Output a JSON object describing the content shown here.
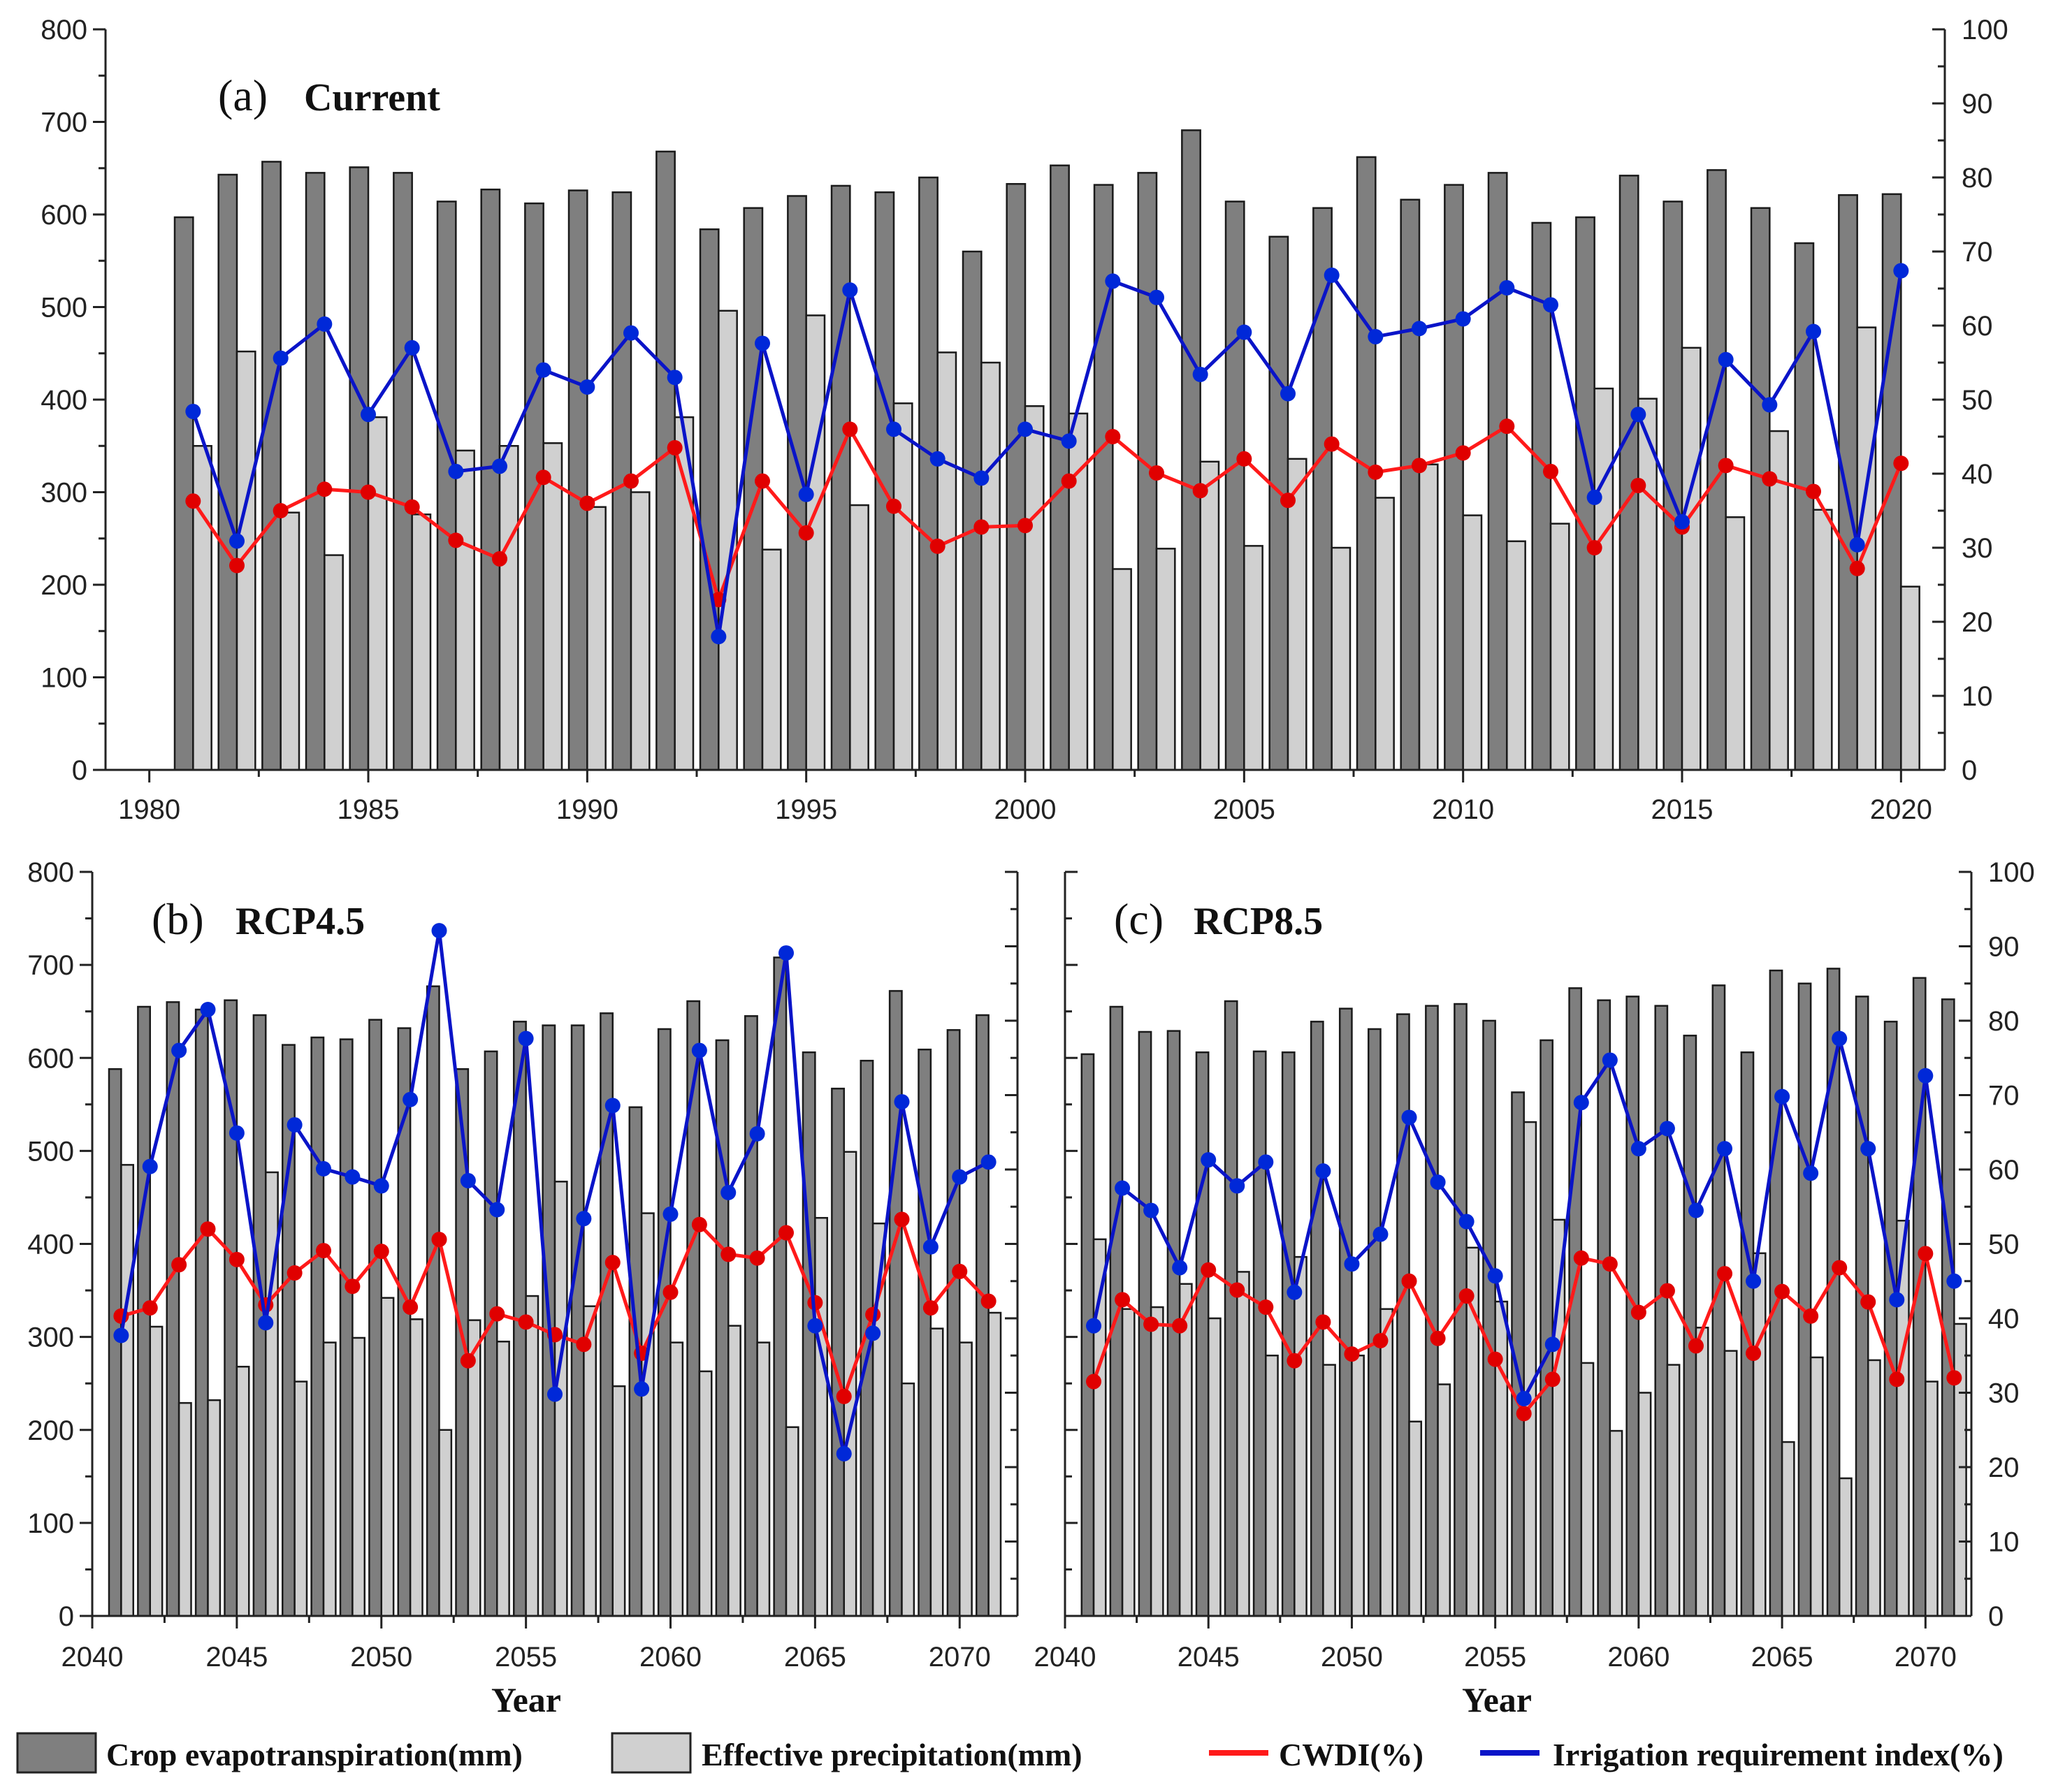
{
  "chart_data": [
    {
      "type": "bar+line",
      "panel_label": "(a)",
      "title": "Current",
      "xlabel": "",
      "xlim": [
        1979,
        2021
      ],
      "xticks": [
        "1980",
        "1985",
        "1990",
        "1995",
        "2000",
        "2005",
        "2010",
        "2015",
        "2020"
      ],
      "ylim_left": [
        0,
        800
      ],
      "ylim_right": [
        0,
        100
      ],
      "yticks_left": [
        "0",
        "100",
        "200",
        "300",
        "400",
        "500",
        "600",
        "700",
        "800"
      ],
      "yticks_right": [
        "0",
        "10",
        "20",
        "30",
        "40",
        "50",
        "60",
        "70",
        "80",
        "90",
        "100"
      ],
      "show_left_labels": true,
      "show_right_labels": true,
      "x": [
        1981,
        1982,
        1983,
        1984,
        1985,
        1986,
        1987,
        1988,
        1989,
        1990,
        1991,
        1992,
        1993,
        1994,
        1995,
        1996,
        1997,
        1998,
        1999,
        2000,
        2001,
        2002,
        2003,
        2004,
        2005,
        2006,
        2007,
        2008,
        2009,
        2010,
        2011,
        2012,
        2013,
        2014,
        2015,
        2016,
        2017,
        2018,
        2019,
        2020
      ],
      "series": [
        {
          "name": "Crop evapotranspiration(mm)",
          "axis": "left",
          "kind": "bar",
          "values": [
            597,
            643,
            657,
            645,
            651,
            645,
            614,
            627,
            612,
            626,
            624,
            668,
            584,
            607,
            620,
            631,
            624,
            640,
            560,
            633,
            653,
            632,
            645,
            691,
            614,
            576,
            607,
            662,
            616,
            632,
            645,
            591,
            597,
            642,
            614,
            648,
            607,
            569,
            621,
            622
          ]
        },
        {
          "name": "Effective precipitation(mm)",
          "axis": "left",
          "kind": "bar",
          "values": [
            350,
            452,
            278,
            232,
            381,
            276,
            345,
            350,
            353,
            284,
            300,
            381,
            496,
            238,
            491,
            286,
            396,
            451,
            440,
            393,
            385,
            217,
            239,
            333,
            242,
            336,
            240,
            294,
            330,
            275,
            247,
            266,
            412,
            401,
            456,
            273,
            366,
            281,
            478,
            198
          ]
        },
        {
          "name": "CWDI(%)",
          "axis": "right",
          "kind": "line",
          "values": [
            36.3,
            27.6,
            35.0,
            37.9,
            37.5,
            35.5,
            31.0,
            28.5,
            39.5,
            36.0,
            39.0,
            43.5,
            23.0,
            39.0,
            32.0,
            46.0,
            35.6,
            30.2,
            32.8,
            33.0,
            39.0,
            45.0,
            40.1,
            37.7,
            42.0,
            36.4,
            44.0,
            40.2,
            41.1,
            42.8,
            46.4,
            40.3,
            30.0,
            38.4,
            32.8,
            41.1,
            39.3,
            37.6,
            27.2,
            41.4
          ]
        },
        {
          "name": "Irrigation requirement index(%)",
          "axis": "right",
          "kind": "line",
          "values": [
            48.4,
            30.9,
            55.6,
            60.2,
            48.0,
            57.0,
            40.3,
            41.0,
            54.0,
            51.7,
            59.0,
            53.0,
            18.0,
            57.6,
            37.2,
            64.8,
            46.0,
            42.0,
            39.4,
            46.0,
            44.4,
            66.0,
            63.8,
            53.4,
            59.1,
            50.8,
            66.8,
            58.5,
            59.6,
            60.9,
            65.1,
            62.8,
            36.8,
            48.0,
            33.5,
            55.4,
            49.3,
            59.2,
            30.4,
            67.4
          ]
        }
      ]
    },
    {
      "type": "bar+line",
      "panel_label": "(b)",
      "title": "RCP4.5",
      "xlabel": "Year",
      "xlim": [
        2040,
        2072
      ],
      "xticks": [
        "2040",
        "2045",
        "2050",
        "2055",
        "2060",
        "2065",
        "2070"
      ],
      "ylim_left": [
        0,
        800
      ],
      "ylim_right": [
        0,
        100
      ],
      "yticks_left": [
        "0",
        "100",
        "200",
        "300",
        "400",
        "500",
        "600",
        "700",
        "800"
      ],
      "yticks_right": [],
      "show_left_labels": true,
      "show_right_labels": false,
      "x": [
        2041,
        2042,
        2043,
        2044,
        2045,
        2046,
        2047,
        2048,
        2049,
        2050,
        2051,
        2052,
        2053,
        2054,
        2055,
        2056,
        2057,
        2058,
        2059,
        2060,
        2061,
        2062,
        2063,
        2064,
        2065,
        2066,
        2067,
        2068,
        2069,
        2070,
        2071
      ],
      "series": [
        {
          "name": "Crop evapotranspiration(mm)",
          "axis": "left",
          "kind": "bar",
          "values": [
            588,
            655,
            660,
            652,
            662,
            646,
            614,
            622,
            620,
            641,
            632,
            677,
            588,
            607,
            639,
            635,
            635,
            648,
            547,
            631,
            661,
            619,
            645,
            708,
            606,
            567,
            597,
            672,
            609,
            630,
            646
          ]
        },
        {
          "name": "Effective precipitation(mm)",
          "axis": "left",
          "kind": "bar",
          "values": [
            485,
            311,
            229,
            232,
            268,
            477,
            252,
            294,
            299,
            342,
            319,
            200,
            318,
            295,
            344,
            467,
            333,
            247,
            433,
            294,
            263,
            312,
            294,
            203,
            428,
            499,
            422,
            250,
            309,
            294,
            326
          ]
        },
        {
          "name": "CWDI(%)",
          "axis": "right",
          "kind": "line",
          "values": [
            40.3,
            41.4,
            47.2,
            52.0,
            47.9,
            41.8,
            46.1,
            49.1,
            44.3,
            49.0,
            41.5,
            50.6,
            34.3,
            40.6,
            39.5,
            37.8,
            36.5,
            47.5,
            35.3,
            43.5,
            52.6,
            48.6,
            48.1,
            51.5,
            42.1,
            29.5,
            40.5,
            53.3,
            41.4,
            46.3,
            42.3
          ]
        },
        {
          "name": "Irrigation requirement index(%)",
          "axis": "right",
          "kind": "line",
          "values": [
            37.7,
            60.4,
            76.0,
            81.5,
            64.9,
            39.4,
            66.0,
            60.1,
            59.0,
            57.8,
            69.4,
            92.1,
            58.5,
            54.6,
            77.6,
            29.8,
            53.4,
            68.6,
            30.5,
            54.0,
            76.0,
            56.9,
            64.8,
            89.1,
            39.0,
            21.8,
            38.0,
            69.1,
            49.6,
            59.0,
            61.0
          ]
        }
      ]
    },
    {
      "type": "bar+line",
      "panel_label": "(c)",
      "title": "RCP8.5",
      "xlabel": "Year",
      "xlim": [
        2040,
        2071.6
      ],
      "xticks": [
        "2040",
        "2045",
        "2050",
        "2055",
        "2060",
        "2065",
        "2070"
      ],
      "ylim_left": [
        0,
        800
      ],
      "ylim_right": [
        0,
        100
      ],
      "yticks_left": [],
      "yticks_right": [
        "0",
        "10",
        "20",
        "30",
        "40",
        "50",
        "60",
        "70",
        "80",
        "90",
        "100"
      ],
      "show_left_labels": false,
      "show_right_labels": true,
      "x": [
        2041,
        2042,
        2043,
        2044,
        2045,
        2046,
        2047,
        2048,
        2049,
        2050,
        2051,
        2052,
        2053,
        2054,
        2055,
        2056,
        2057,
        2058,
        2059,
        2060,
        2061,
        2062,
        2063,
        2064,
        2065,
        2066,
        2067,
        2068,
        2069,
        2070,
        2071
      ],
      "series": [
        {
          "name": "Crop evapotranspiration(mm)",
          "axis": "left",
          "kind": "bar",
          "values": [
            604,
            655,
            628,
            629,
            606,
            661,
            607,
            606,
            639,
            653,
            631,
            647,
            656,
            658,
            640,
            563,
            619,
            675,
            662,
            666,
            656,
            624,
            678,
            606,
            694,
            680,
            696,
            666,
            639,
            686,
            663
          ]
        },
        {
          "name": "Effective precipitation(mm)",
          "axis": "left",
          "kind": "bar",
          "values": [
            405,
            330,
            332,
            357,
            320,
            370,
            280,
            386,
            270,
            280,
            330,
            209,
            249,
            396,
            338,
            531,
            426,
            272,
            199,
            240,
            270,
            310,
            285,
            390,
            187,
            278,
            148,
            275,
            425,
            252,
            314
          ]
        },
        {
          "name": "CWDI(%)",
          "axis": "right",
          "kind": "line",
          "values": [
            31.5,
            42.5,
            39.2,
            39.0,
            46.5,
            43.8,
            41.5,
            34.3,
            39.5,
            35.2,
            37.0,
            45.0,
            37.3,
            43.0,
            34.5,
            27.2,
            31.8,
            48.1,
            47.3,
            40.8,
            43.7,
            36.3,
            46.0,
            35.3,
            43.6,
            40.3,
            46.8,
            42.2,
            31.8,
            48.7,
            32.0
          ]
        },
        {
          "name": "Irrigation requirement index(%)",
          "axis": "right",
          "kind": "line",
          "values": [
            39.0,
            57.5,
            54.5,
            46.8,
            61.3,
            57.8,
            61.0,
            43.5,
            59.8,
            47.3,
            51.3,
            67.0,
            58.3,
            53.0,
            45.7,
            29.2,
            36.5,
            69.0,
            74.7,
            62.8,
            65.5,
            54.5,
            62.8,
            45.0,
            69.8,
            59.5,
            77.6,
            62.8,
            42.5,
            72.6,
            45.0
          ]
        }
      ]
    }
  ],
  "legend": {
    "items": [
      {
        "label": "Crop evapotranspiration(mm)",
        "kind": "bar",
        "color": "#7f7f7f"
      },
      {
        "label": "Effective precipitation(mm)",
        "kind": "bar",
        "color": "#d0d0d0"
      },
      {
        "label": "CWDI(%)",
        "kind": "line",
        "color": "#ff0000"
      },
      {
        "label": "Irrigation requirement index(%)",
        "kind": "line",
        "color": "#0a14c8"
      }
    ]
  },
  "colors": {
    "et_bar": "#7f7f7f",
    "pe_bar": "#d0d0d0",
    "cwdi_line": "#ff1a1a",
    "cwdi_marker": "#e00000",
    "iri_line": "#0a14c8",
    "iri_marker": "#0028d8"
  }
}
